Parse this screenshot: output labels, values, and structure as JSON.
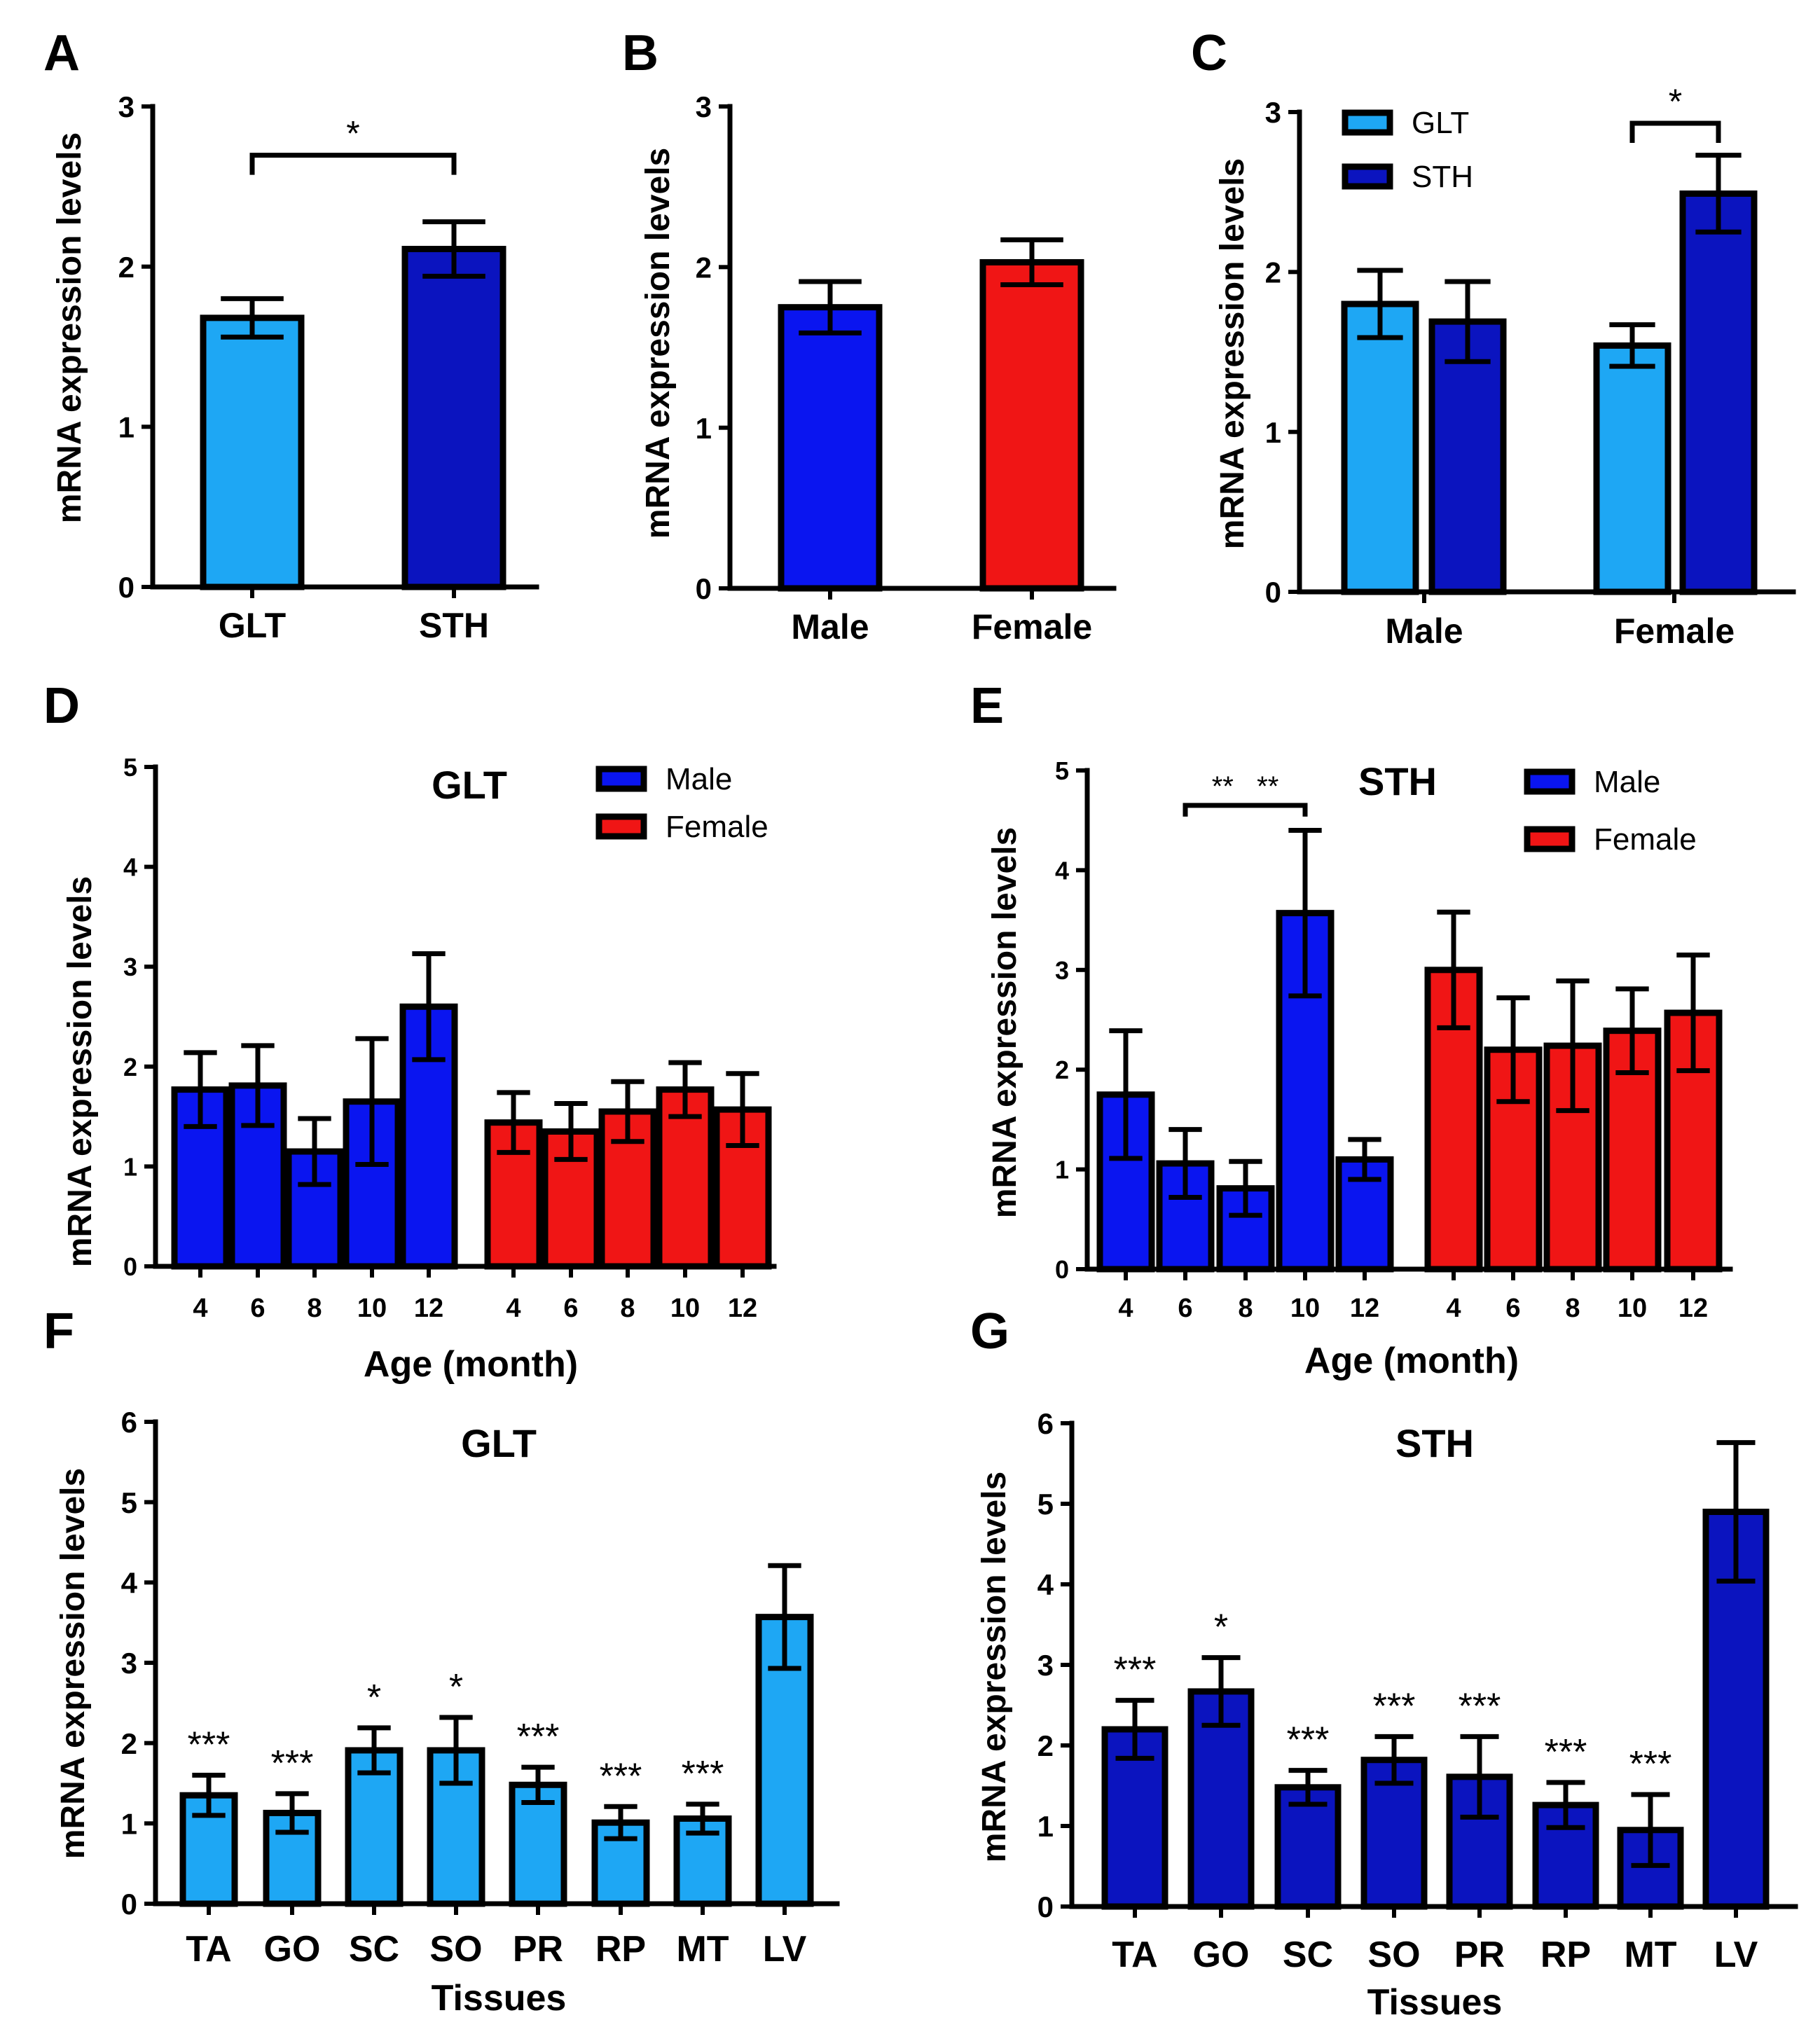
{
  "colors": {
    "glt": "#1ea7f4",
    "sth": "#0b14bf",
    "male": "#0a15f0",
    "female": "#f01515"
  },
  "chart_data": [
    {
      "panel": "A",
      "type": "bar",
      "title": "",
      "xlabel": "",
      "ylabel": "mRNA expression levels",
      "ylim": [
        0,
        3
      ],
      "yticks": [
        "0",
        "1",
        "2",
        "3"
      ],
      "categories": [
        "GLT",
        "STH"
      ],
      "series": [
        {
          "name": "",
          "values": [
            1.68,
            2.11
          ],
          "errors": [
            0.12,
            0.17
          ],
          "colors": [
            "glt",
            "sth"
          ]
        }
      ],
      "significance": [
        {
          "label": "*",
          "from": 0,
          "to": 1
        }
      ],
      "annotations": []
    },
    {
      "panel": "B",
      "type": "bar",
      "title": "",
      "xlabel": "",
      "ylabel": "mRNA expression levels",
      "ylim": [
        0,
        3
      ],
      "yticks": [
        "0",
        "1",
        "2",
        "3"
      ],
      "categories": [
        "Male",
        "Female"
      ],
      "series": [
        {
          "name": "",
          "values": [
            1.75,
            2.03
          ],
          "errors": [
            0.16,
            0.14
          ],
          "colors": [
            "male",
            "female"
          ]
        }
      ],
      "significance": [],
      "annotations": []
    },
    {
      "panel": "C",
      "type": "bar",
      "title": "",
      "xlabel": "",
      "ylabel": "mRNA expression levels",
      "ylim": [
        0,
        3
      ],
      "yticks": [
        "0",
        "1",
        "2",
        "3"
      ],
      "categories": [
        "Male",
        "Female"
      ],
      "legend": [
        {
          "label": "GLT",
          "color": "glt"
        },
        {
          "label": "STH",
          "color": "sth"
        }
      ],
      "series": [
        {
          "name": "GLT",
          "values": [
            1.8,
            1.54
          ],
          "errors": [
            0.21,
            0.13
          ],
          "colors": [
            "glt",
            "glt"
          ]
        },
        {
          "name": "STH",
          "values": [
            1.69,
            2.49
          ],
          "errors": [
            0.25,
            0.24
          ],
          "colors": [
            "sth",
            "sth"
          ]
        }
      ],
      "significance": [
        {
          "label": "*",
          "group": 1
        }
      ],
      "annotations": []
    },
    {
      "panel": "D",
      "type": "bar",
      "title": "GLT",
      "xlabel": "Age (month)",
      "ylabel": "mRNA expression levels",
      "ylim": [
        0,
        5
      ],
      "yticks": [
        "0",
        "1",
        "2",
        "3",
        "4",
        "5"
      ],
      "categories": [
        "4",
        "6",
        "8",
        "10",
        "12",
        "4",
        "6",
        "8",
        "10",
        "12"
      ],
      "legend": [
        {
          "label": "Male",
          "color": "male"
        },
        {
          "label": "Female",
          "color": "female"
        }
      ],
      "series": [
        {
          "name": "",
          "values": [
            1.77,
            1.81,
            1.15,
            1.65,
            2.6,
            1.44,
            1.35,
            1.55,
            1.77,
            1.57
          ],
          "errors": [
            0.37,
            0.4,
            0.33,
            0.63,
            0.53,
            0.3,
            0.28,
            0.3,
            0.27,
            0.36
          ],
          "colors": [
            "male",
            "male",
            "male",
            "male",
            "male",
            "female",
            "female",
            "female",
            "female",
            "female"
          ]
        }
      ],
      "significance": [],
      "annotations": []
    },
    {
      "panel": "E",
      "type": "bar",
      "title": "STH",
      "xlabel": "Age (month)",
      "ylabel": "mRNA expression levels",
      "ylim": [
        0,
        5
      ],
      "yticks": [
        "0",
        "1",
        "2",
        "3",
        "4",
        "5"
      ],
      "categories": [
        "4",
        "6",
        "8",
        "10",
        "12",
        "4",
        "6",
        "8",
        "10",
        "12"
      ],
      "legend": [
        {
          "label": "Male",
          "color": "male"
        },
        {
          "label": "Female",
          "color": "female"
        }
      ],
      "series": [
        {
          "name": "",
          "values": [
            1.75,
            1.06,
            0.81,
            3.57,
            1.1,
            3.0,
            2.2,
            2.24,
            2.39,
            2.57
          ],
          "errors": [
            0.64,
            0.34,
            0.27,
            0.83,
            0.2,
            0.58,
            0.52,
            0.65,
            0.42,
            0.58
          ],
          "colors": [
            "male",
            "male",
            "male",
            "male",
            "male",
            "female",
            "female",
            "female",
            "female",
            "female"
          ]
        }
      ],
      "significance": [
        {
          "label": "**   **",
          "from": 1,
          "to": 3
        }
      ],
      "annotations": []
    },
    {
      "panel": "F",
      "type": "bar",
      "title": "GLT",
      "xlabel": "Tissues",
      "ylabel": "mRNA expression levels",
      "ylim": [
        0,
        6
      ],
      "yticks": [
        "0",
        "1",
        "2",
        "3",
        "4",
        "5",
        "6"
      ],
      "categories": [
        "TA",
        "GO",
        "SC",
        "SO",
        "PR",
        "RP",
        "MT",
        "LV"
      ],
      "series": [
        {
          "name": "",
          "values": [
            1.35,
            1.13,
            1.91,
            1.91,
            1.48,
            1.01,
            1.06,
            3.57
          ],
          "errors": [
            0.25,
            0.24,
            0.28,
            0.41,
            0.22,
            0.2,
            0.18,
            0.64
          ],
          "colors": [
            "glt",
            "glt",
            "glt",
            "glt",
            "glt",
            "glt",
            "glt",
            "glt"
          ]
        }
      ],
      "significance": [],
      "annotations": [
        "***",
        "***",
        "*",
        "*",
        "***",
        "***",
        "***",
        ""
      ]
    },
    {
      "panel": "G",
      "type": "bar",
      "title": "STH",
      "xlabel": "Tissues",
      "ylabel": "mRNA expression levels",
      "ylim": [
        0,
        6
      ],
      "yticks": [
        "0",
        "1",
        "2",
        "3",
        "4",
        "5",
        "6"
      ],
      "categories": [
        "TA",
        "GO",
        "SC",
        "SO",
        "PR",
        "RP",
        "MT",
        "LV"
      ],
      "series": [
        {
          "name": "",
          "values": [
            2.2,
            2.67,
            1.48,
            1.82,
            1.61,
            1.26,
            0.95,
            4.9
          ],
          "errors": [
            0.36,
            0.42,
            0.21,
            0.29,
            0.5,
            0.28,
            0.44,
            0.86
          ],
          "colors": [
            "sth",
            "sth",
            "sth",
            "sth",
            "sth",
            "sth",
            "sth",
            "sth"
          ]
        }
      ],
      "significance": [],
      "annotations": [
        "***",
        "*",
        "***",
        "***",
        "***",
        "***",
        "***",
        ""
      ]
    }
  ]
}
